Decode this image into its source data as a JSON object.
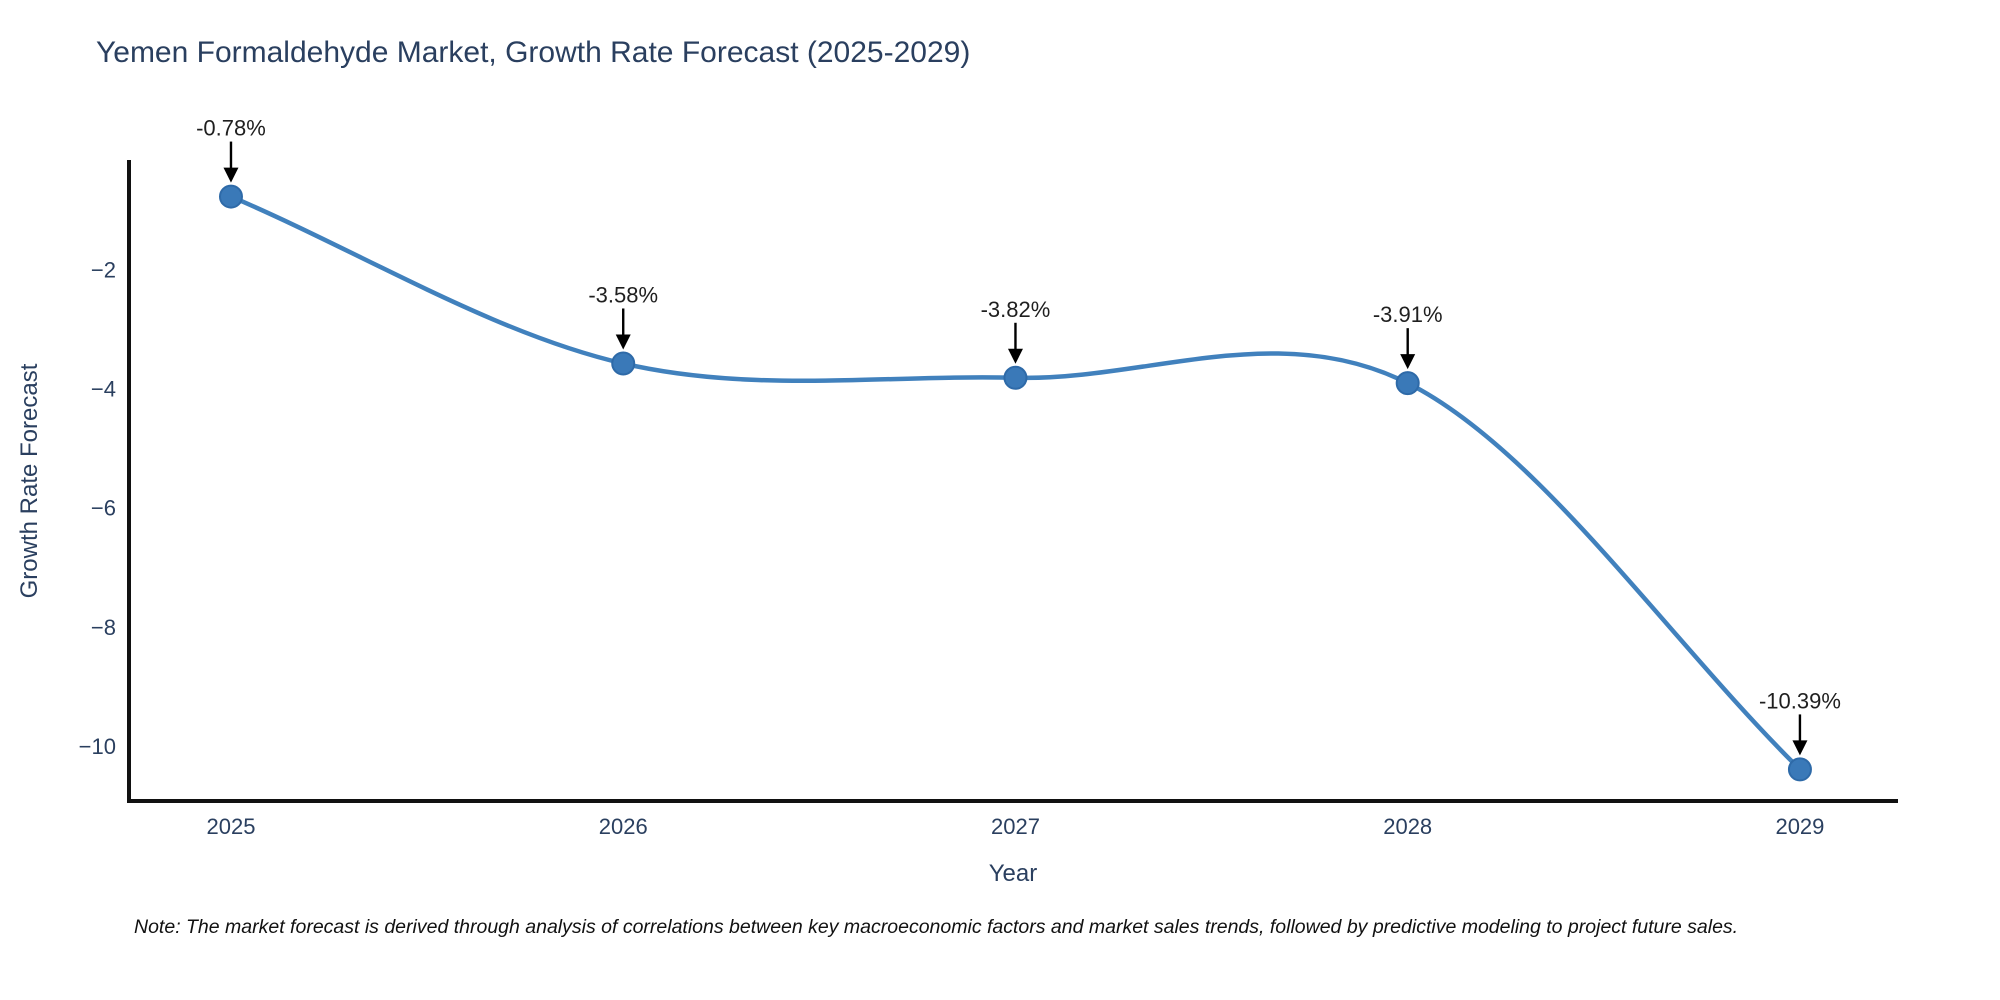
{
  "chart_data": {
    "type": "line",
    "title": "Yemen Formaldehyde Market, Growth Rate Forecast (2025-2029)",
    "xlabel": "Year",
    "ylabel": "Growth Rate Forecast",
    "x": [
      2025,
      2026,
      2027,
      2028,
      2029
    ],
    "y": [
      -0.78,
      -3.58,
      -3.82,
      -3.91,
      -10.39
    ],
    "point_labels": [
      "-0.78%",
      "-3.58%",
      "-3.82%",
      "-3.91%",
      "-10.39%"
    ],
    "x_tick_labels": [
      "2025",
      "2026",
      "2027",
      "2028",
      "2029"
    ],
    "y_ticks": [
      -2,
      -4,
      -6,
      -8,
      -10
    ],
    "y_tick_labels": [
      "−2",
      "−4",
      "−6",
      "−8",
      "−10"
    ],
    "xlim": [
      2024.74,
      2029.25
    ],
    "ylim": [
      -10.92,
      -0.2
    ],
    "grid": false,
    "legend": "none",
    "line_shape": "spline",
    "marker_style": "circle",
    "annotation_arrows": "black, pointing down to each marker",
    "colors": {
      "line": "#4181bd",
      "marker": "#3a79b8",
      "marker_edge": "#2e6aa8",
      "axis": "#111111",
      "title": "#2a3f5f",
      "tick": "#2a3f5f",
      "annotation": "#1f1f1f",
      "note": "#111111",
      "background": "#ffffff"
    },
    "note": "Note: The market forecast is derived through analysis of correlations between key macroeconomic factors and market sales trends, followed by predictive modeling to project future sales."
  }
}
